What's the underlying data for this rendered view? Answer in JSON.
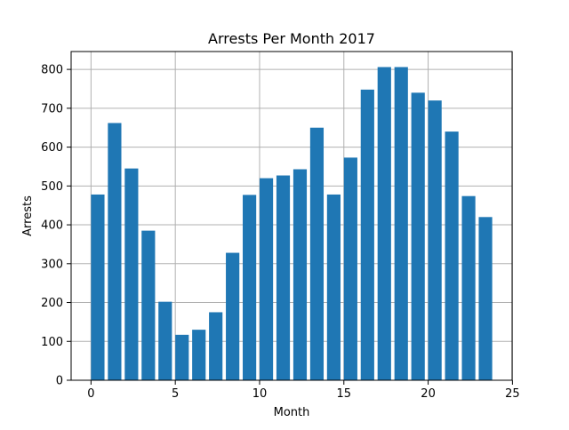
{
  "chart_data": {
    "type": "bar",
    "title": "Arrests Per Month 2017",
    "xlabel": "Month",
    "ylabel": "Arrests",
    "x": [
      0.4,
      1.4,
      2.4,
      3.4,
      4.4,
      5.4,
      6.4,
      7.4,
      8.4,
      9.4,
      10.4,
      11.4,
      12.4,
      13.4,
      14.4,
      15.4,
      16.4,
      17.4,
      18.4,
      19.4,
      20.4,
      21.4,
      22.4,
      23.4
    ],
    "values": [
      478,
      662,
      545,
      385,
      202,
      117,
      130,
      175,
      328,
      477,
      520,
      527,
      543,
      650,
      478,
      573,
      748,
      806,
      806,
      740,
      720,
      640,
      474,
      420
    ],
    "bar_width": 0.8,
    "xlim": [
      -1.18,
      24.98
    ],
    "ylim": [
      0,
      846
    ],
    "xticks": [
      0,
      5,
      10,
      15,
      20,
      25
    ],
    "yticks": [
      0,
      100,
      200,
      300,
      400,
      500,
      600,
      700,
      800
    ],
    "grid": true,
    "bar_color": "#1f77b4",
    "grid_color": "#b0b0b0"
  }
}
